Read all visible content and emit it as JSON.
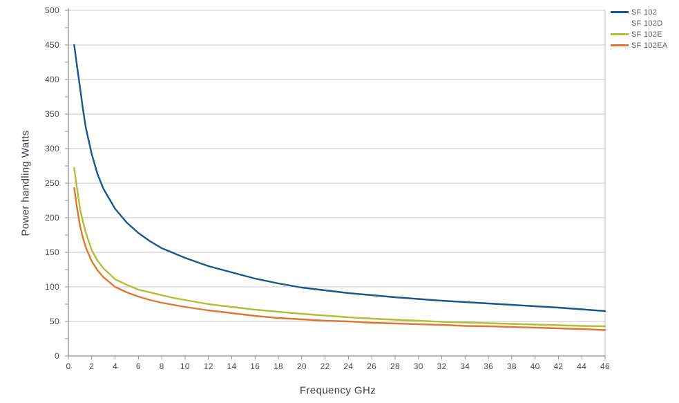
{
  "chart_data": {
    "type": "line",
    "title": "",
    "xlabel": "Frequency GHz",
    "ylabel": "Power handling Watts",
    "xlim": [
      0,
      46
    ],
    "ylim": [
      0,
      500
    ],
    "x_ticks": [
      0,
      2,
      4,
      6,
      8,
      10,
      12,
      14,
      16,
      18,
      20,
      22,
      24,
      26,
      28,
      30,
      32,
      34,
      36,
      38,
      40,
      42,
      44,
      46
    ],
    "y_ticks": [
      0,
      50,
      100,
      150,
      200,
      250,
      300,
      350,
      400,
      450,
      500
    ],
    "y_minor_tick_step": 25,
    "grid": "horizontal gridlines every 50, top and right plot border",
    "legend_position": "top-right outside plot",
    "x": [
      0.5,
      0.75,
      1,
      1.25,
      1.5,
      2,
      2.5,
      3,
      4,
      5,
      6,
      7,
      8,
      9,
      10,
      12,
      14,
      16,
      18,
      20,
      22,
      24,
      26,
      28,
      30,
      32,
      34,
      36,
      38,
      40,
      42,
      44,
      46
    ],
    "series": [
      {
        "name": "SF 102",
        "color": "#16578d",
        "values": [
          450,
          418,
          388,
          357,
          330,
          292,
          263,
          242,
          213,
          193,
          178,
          166,
          156,
          149,
          142,
          130,
          121,
          112,
          105,
          99,
          95,
          91,
          88,
          85,
          82.5,
          80,
          78,
          76,
          74,
          72,
          70,
          67.5,
          65
        ]
      },
      {
        "name": "SF 102D",
        "color": "none",
        "values": []
      },
      {
        "name": "SF 102E",
        "color": "#b3be33",
        "values": [
          272,
          241,
          213,
          194,
          178,
          153,
          138,
          127,
          111,
          103,
          96,
          92,
          88,
          84,
          81,
          75,
          71,
          67,
          64,
          61,
          58.5,
          56,
          54,
          52.5,
          51,
          49.5,
          48.5,
          47.5,
          46.5,
          45.5,
          44.5,
          43.5,
          43
        ]
      },
      {
        "name": "SF 102EA",
        "color": "#e0762f",
        "values": [
          243,
          213,
          188,
          171,
          157,
          137,
          124,
          114,
          100,
          92,
          86,
          81,
          77,
          74,
          71,
          66,
          62,
          58,
          55,
          53,
          51,
          50,
          48,
          47,
          46,
          45,
          43.5,
          43,
          42,
          41,
          40,
          39,
          37.5
        ]
      }
    ]
  },
  "style": {
    "grid_color": "#c6c6c6",
    "axis_color": "#8f8f8f",
    "tick_label_color": "#4b4b4b",
    "axis_title_color": "#3d4148",
    "legend_text_color": "#55585e",
    "background": "#ffffff"
  }
}
